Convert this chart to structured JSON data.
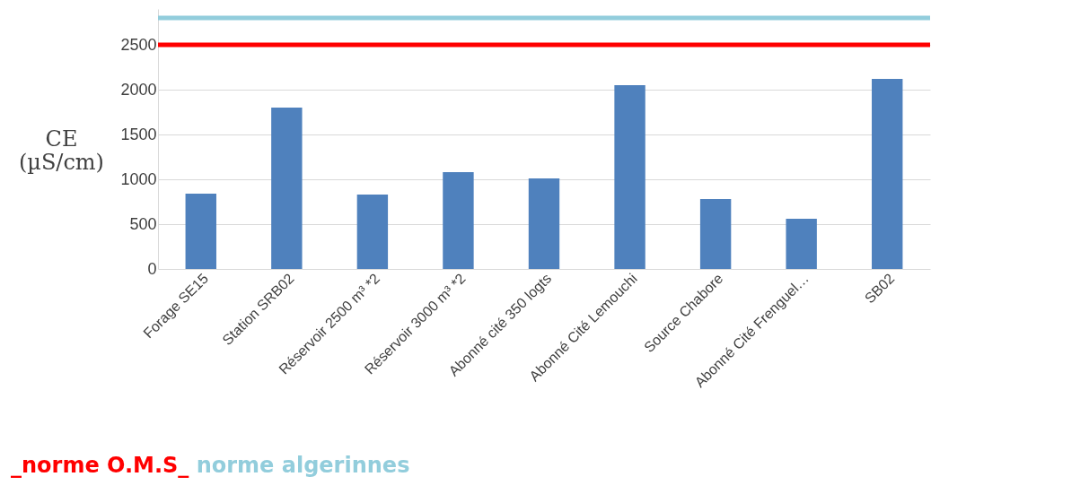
{
  "chart_data": {
    "type": "bar",
    "ylabel": "CE (µS/cm)",
    "categories": [
      "Forage SE15",
      "Station SRB02",
      "Réservoir 2500 m³ *2",
      "Réservoir 3000 m³ *2",
      "Abonné cité 350 logts",
      "Abonné Cité Lemouchi",
      "Source Chabore",
      "Abonné Cité Frenguel…",
      "SB02"
    ],
    "values": [
      840,
      1800,
      830,
      1080,
      1010,
      2050,
      780,
      560,
      2120
    ],
    "color": "#4f81bd",
    "ylim": [
      0,
      2900
    ],
    "yticks": [
      0,
      500,
      1000,
      1500,
      2000,
      2500
    ],
    "grid": "y",
    "ref_lines": [
      {
        "axis": "y",
        "value": 2500,
        "label": "_norme O.M.S_",
        "color": "#ff0000"
      },
      {
        "axis": "y",
        "value": 2800,
        "label": "norme algerinnes",
        "color": "#92cddc"
      }
    ]
  }
}
